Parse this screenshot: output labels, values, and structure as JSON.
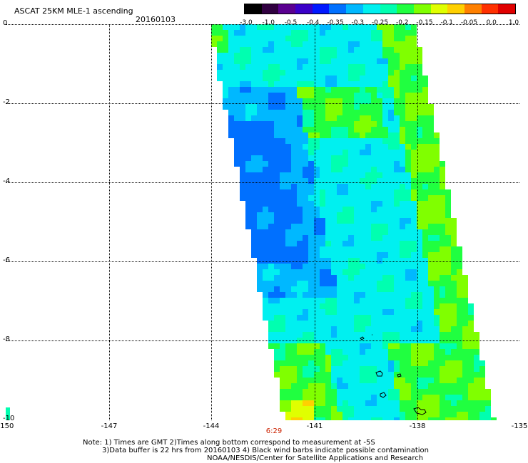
{
  "header": {
    "title": "ASCAT 25KM MLE-1 ascending",
    "date": "20160103"
  },
  "colorbar": {
    "labels": [
      "-3.0",
      "-1.0",
      "-0.5",
      "-0.4",
      "-0.35",
      "-0.3",
      "-0.25",
      "-0.2",
      "-0.15",
      "-0.1",
      "-0.05",
      "0.0",
      "1.0"
    ],
    "colors": [
      "#000000",
      "#300040",
      "#5a0090",
      "#3a00c8",
      "#0018ff",
      "#0070ff",
      "#00b8ff",
      "#00f0f0",
      "#00ffb0",
      "#20ff40",
      "#80ff00",
      "#e0ff00",
      "#ffd000",
      "#ff8000",
      "#ff3000",
      "#e00000"
    ]
  },
  "axes": {
    "lon_ticks": [
      "-150",
      "-147",
      "-144",
      "-141",
      "-138",
      "-135"
    ],
    "lat_ticks": [
      "0",
      "-2",
      "-4",
      "-6",
      "-8",
      "-10"
    ]
  },
  "swath": {
    "time_label": "6:29"
  },
  "notes": {
    "line1": "Note: 1) Times are GMT 2)Times along bottom correspond to measurement at -5S",
    "line2": "3)Data buffer is 22 hrs from 20160103 4) Black wind barbs indicate possible contamination",
    "line3": "NOAA/NESDIS/Center for Satellite Applications and Research"
  }
}
